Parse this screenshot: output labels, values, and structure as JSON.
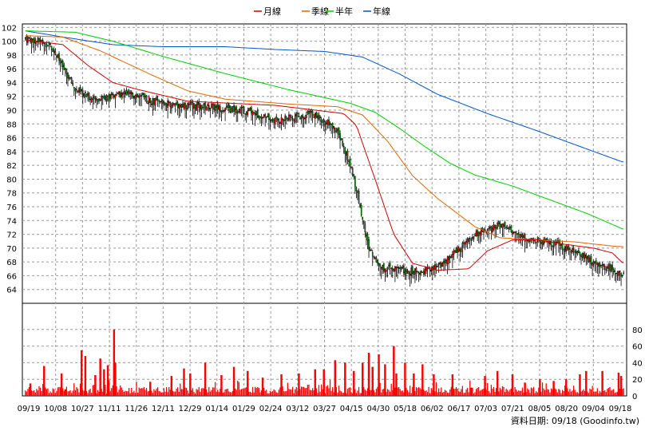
{
  "chart_data": {
    "type": "candlestick",
    "legend": [
      {
        "label": "月線",
        "color": "#cc0000"
      },
      {
        "label": "季線",
        "color": "#e06600"
      },
      {
        "label": "半年",
        "color": "#00cc00"
      },
      {
        "label": "年線",
        "color": "#0055cc"
      }
    ],
    "price_axis": {
      "ylim": [
        62,
        102.5
      ],
      "ticks": [
        64,
        66,
        68,
        70,
        72,
        74,
        76,
        78,
        80,
        82,
        84,
        86,
        88,
        90,
        92,
        94,
        96,
        98,
        100,
        102
      ]
    },
    "volume_axis": {
      "ylim": [
        0,
        100
      ],
      "ticks": [
        0,
        20,
        40,
        60,
        80
      ]
    },
    "x_labels": [
      "09/19",
      "10/08",
      "10/27",
      "11/11",
      "11/26",
      "12/11",
      "12/29",
      "01/14",
      "01/29",
      "02/24",
      "03/12",
      "03/27",
      "04/15",
      "04/30",
      "05/18",
      "06/02",
      "06/17",
      "07/03",
      "07/21",
      "08/05",
      "08/20",
      "09/04",
      "09/18"
    ],
    "price_anchors": [
      [
        0,
        100.5
      ],
      [
        20,
        99.5
      ],
      [
        40,
        93
      ],
      [
        55,
        91.5
      ],
      [
        80,
        92.4
      ],
      [
        110,
        91
      ],
      [
        150,
        90.5
      ],
      [
        180,
        89.8
      ],
      [
        200,
        88.5
      ],
      [
        230,
        89.5
      ],
      [
        250,
        87
      ],
      [
        262,
        81
      ],
      [
        275,
        70
      ],
      [
        285,
        67.2
      ],
      [
        318,
        66.5
      ],
      [
        332,
        67.5
      ],
      [
        360,
        72
      ],
      [
        380,
        73.3
      ],
      [
        398,
        71.5
      ],
      [
        430,
        70.3
      ],
      [
        455,
        68
      ],
      [
        478,
        66.3
      ]
    ],
    "ma_month_anchors": [
      [
        0,
        100.2
      ],
      [
        30,
        99.5
      ],
      [
        50,
        96.5
      ],
      [
        70,
        94
      ],
      [
        90,
        93
      ],
      [
        130,
        91.3
      ],
      [
        200,
        90.7
      ],
      [
        255,
        89.5
      ],
      [
        265,
        87.8
      ],
      [
        280,
        80
      ],
      [
        295,
        72
      ],
      [
        310,
        67.8
      ],
      [
        330,
        66.8
      ],
      [
        355,
        67
      ],
      [
        370,
        69.6
      ],
      [
        390,
        71.2
      ],
      [
        410,
        71.2
      ],
      [
        430,
        70.6
      ],
      [
        455,
        70
      ],
      [
        470,
        69.3
      ],
      [
        478,
        67.9
      ]
    ],
    "ma_quarter_anchors": [
      [
        0,
        100.8
      ],
      [
        30,
        100.6
      ],
      [
        60,
        98.6
      ],
      [
        100,
        95.2
      ],
      [
        130,
        92.8
      ],
      [
        160,
        91.6
      ],
      [
        210,
        90.9
      ],
      [
        250,
        90.5
      ],
      [
        270,
        89.3
      ],
      [
        290,
        85.5
      ],
      [
        310,
        80.5
      ],
      [
        330,
        77.2
      ],
      [
        360,
        73.1
      ],
      [
        380,
        71.5
      ],
      [
        400,
        71.3
      ],
      [
        440,
        70.9
      ],
      [
        470,
        70.3
      ],
      [
        478,
        70.2
      ]
    ],
    "ma_half_anchors": [
      [
        0,
        101.5
      ],
      [
        40,
        101.3
      ],
      [
        70,
        100
      ],
      [
        110,
        97.8
      ],
      [
        160,
        95.3
      ],
      [
        210,
        93
      ],
      [
        260,
        91
      ],
      [
        280,
        89.7
      ],
      [
        300,
        87.3
      ],
      [
        320,
        84.7
      ],
      [
        340,
        82.3
      ],
      [
        360,
        80.6
      ],
      [
        390,
        79
      ],
      [
        420,
        77
      ],
      [
        450,
        75
      ],
      [
        478,
        72.8
      ]
    ],
    "ma_year_anchors": [
      [
        0,
        101.5
      ],
      [
        30,
        100.6
      ],
      [
        70,
        99.5
      ],
      [
        110,
        99.2
      ],
      [
        160,
        99.2
      ],
      [
        200,
        98.8
      ],
      [
        240,
        98.5
      ],
      [
        270,
        97.7
      ],
      [
        300,
        95.2
      ],
      [
        330,
        92.3
      ],
      [
        370,
        89.5
      ],
      [
        410,
        87
      ],
      [
        440,
        85
      ],
      [
        478,
        82.5
      ]
    ],
    "volume_spikes": [
      [
        4,
        15
      ],
      [
        15,
        36
      ],
      [
        29,
        27
      ],
      [
        32,
        8
      ],
      [
        45,
        55
      ],
      [
        48,
        48
      ],
      [
        56,
        25
      ],
      [
        60,
        45
      ],
      [
        63,
        32
      ],
      [
        66,
        37
      ],
      [
        71,
        80
      ],
      [
        72,
        40
      ],
      [
        100,
        17
      ],
      [
        117,
        24
      ],
      [
        127,
        33
      ],
      [
        132,
        27
      ],
      [
        144,
        40
      ],
      [
        157,
        25
      ],
      [
        167,
        35
      ],
      [
        178,
        30
      ],
      [
        190,
        22
      ],
      [
        205,
        26
      ],
      [
        219,
        27
      ],
      [
        232,
        32
      ],
      [
        239,
        32
      ],
      [
        248,
        43
      ],
      [
        256,
        40
      ],
      [
        263,
        30
      ],
      [
        270,
        40
      ],
      [
        275,
        52
      ],
      [
        278,
        35
      ],
      [
        283,
        50
      ],
      [
        288,
        38
      ],
      [
        295,
        60
      ],
      [
        297,
        27
      ],
      [
        304,
        40
      ],
      [
        311,
        27
      ],
      [
        318,
        38
      ],
      [
        327,
        26
      ],
      [
        342,
        26
      ],
      [
        357,
        10
      ],
      [
        368,
        24
      ],
      [
        378,
        30
      ],
      [
        390,
        26
      ],
      [
        400,
        16
      ],
      [
        412,
        20
      ],
      [
        423,
        18
      ],
      [
        433,
        20
      ],
      [
        444,
        26
      ],
      [
        449,
        30
      ],
      [
        462,
        30
      ],
      [
        475,
        28
      ],
      [
        477,
        24
      ]
    ],
    "footer": "資料日期: 09/18 (Goodinfo.tw)"
  }
}
